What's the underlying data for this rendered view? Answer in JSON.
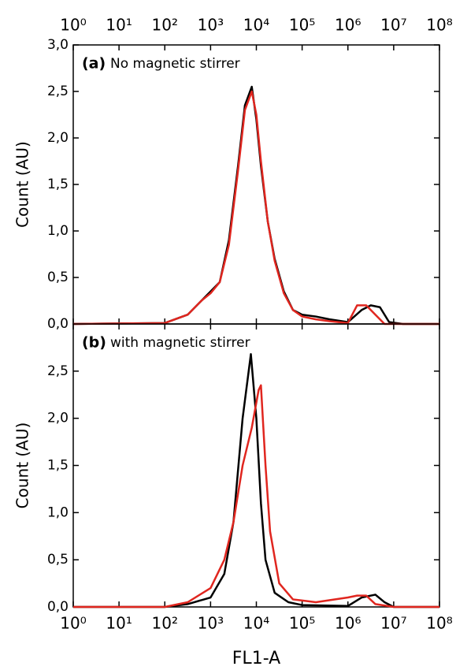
{
  "chart_data": [
    {
      "type": "line",
      "panel_label": "(a)",
      "annotation": "No magnetic stirrer",
      "y_label": "Count (AU)",
      "xscale": "log",
      "xlim": [
        1,
        100000000
      ],
      "xticks_position": "top",
      "xticks": [
        {
          "value": 1,
          "label": "10⁰"
        },
        {
          "value": 10,
          "label": "10¹"
        },
        {
          "value": 100,
          "label": "10²"
        },
        {
          "value": 1000,
          "label": "10³"
        },
        {
          "value": 10000,
          "label": "10⁴"
        },
        {
          "value": 100000,
          "label": "10⁵"
        },
        {
          "value": 1000000,
          "label": "10⁶"
        },
        {
          "value": 10000000,
          "label": "10⁷"
        },
        {
          "value": 100000000,
          "label": "10⁸"
        }
      ],
      "ylim": [
        0,
        3
      ],
      "yticks": [
        {
          "value": 0,
          "label": "0,0"
        },
        {
          "value": 0.5,
          "label": "0,5"
        },
        {
          "value": 1,
          "label": "1,0"
        },
        {
          "value": 1.5,
          "label": "1,5"
        },
        {
          "value": 2,
          "label": "2,0"
        },
        {
          "value": 2.5,
          "label": "2,5"
        },
        {
          "value": 3,
          "label": "3,0"
        }
      ],
      "series": [
        {
          "color": "#000000",
          "x": [
            1,
            100,
            316,
            631,
            1000,
            1585,
            2512,
            3981,
            5623,
            7943,
            10000,
            12589,
            17783,
            25119,
            39811,
            63096,
            100000,
            199526,
            398107,
            1000000,
            1995262,
            3162278,
            5011872,
            7943282,
            15848932,
            100000000
          ],
          "values": [
            0,
            0.01,
            0.1,
            0.25,
            0.35,
            0.45,
            0.9,
            1.7,
            2.35,
            2.55,
            2.2,
            1.7,
            1.1,
            0.7,
            0.35,
            0.15,
            0.1,
            0.08,
            0.05,
            0.02,
            0.15,
            0.2,
            0.18,
            0.02,
            0,
            0
          ]
        },
        {
          "color": "#e0261f",
          "x": [
            1,
            100,
            316,
            631,
            1000,
            1585,
            2512,
            3981,
            5623,
            7943,
            10000,
            12589,
            17783,
            25119,
            39811,
            63096,
            100000,
            199526,
            398107,
            1000000,
            1584893,
            2511886,
            3981072,
            6309573,
            15848932,
            100000000
          ],
          "values": [
            0,
            0.01,
            0.1,
            0.25,
            0.33,
            0.45,
            0.85,
            1.65,
            2.3,
            2.5,
            2.25,
            1.75,
            1.1,
            0.68,
            0.33,
            0.15,
            0.08,
            0.05,
            0.03,
            0.01,
            0.2,
            0.2,
            0.1,
            0,
            0,
            0
          ]
        }
      ]
    },
    {
      "type": "line",
      "panel_label": "(b)",
      "annotation": "with magnetic stirrer",
      "y_label": "Count (AU)",
      "x_label": "FL1-A",
      "xscale": "log",
      "xlim": [
        1,
        100000000
      ],
      "xticks_position": "bottom",
      "xticks": [
        {
          "value": 1,
          "label": "10⁰"
        },
        {
          "value": 10,
          "label": "10¹"
        },
        {
          "value": 100,
          "label": "10²"
        },
        {
          "value": 1000,
          "label": "10³"
        },
        {
          "value": 10000,
          "label": "10⁴"
        },
        {
          "value": 100000,
          "label": "10⁵"
        },
        {
          "value": 1000000,
          "label": "10⁶"
        },
        {
          "value": 10000000,
          "label": "10⁷"
        },
        {
          "value": 100000000,
          "label": "10⁸"
        }
      ],
      "ylim": [
        0,
        3
      ],
      "yticks": [
        {
          "value": 0,
          "label": "0,0"
        },
        {
          "value": 0.5,
          "label": "0,5"
        },
        {
          "value": 1,
          "label": "1,0"
        },
        {
          "value": 1.5,
          "label": "1,5"
        },
        {
          "value": 2,
          "label": "2,0"
        },
        {
          "value": 2.5,
          "label": "2,5"
        }
      ],
      "series": [
        {
          "color": "#000000",
          "x": [
            1,
            100,
            316,
            1000,
            1995,
            3162,
            5012,
            7586,
            10000,
            12589,
            15849,
            25119,
            50119,
            100000,
            1000000,
            1995262,
            3981072,
            6309573,
            10000000,
            100000000
          ],
          "values": [
            0,
            0,
            0.03,
            0.1,
            0.35,
            0.9,
            2.0,
            2.68,
            2.0,
            1.1,
            0.5,
            0.15,
            0.05,
            0.02,
            0.01,
            0.1,
            0.13,
            0.05,
            0,
            0
          ]
        },
        {
          "color": "#e0261f",
          "x": [
            1,
            100,
            316,
            1000,
            1995,
            3162,
            5012,
            7943,
            11220,
            12589,
            15849,
            19953,
            31623,
            63096,
            199526,
            1000000,
            1584893,
            2511886,
            3981072,
            10000000,
            100000000
          ],
          "values": [
            0,
            0,
            0.05,
            0.2,
            0.5,
            0.9,
            1.5,
            1.9,
            2.3,
            2.35,
            1.5,
            0.8,
            0.25,
            0.08,
            0.05,
            0.1,
            0.12,
            0.12,
            0.03,
            0,
            0
          ]
        }
      ]
    }
  ]
}
